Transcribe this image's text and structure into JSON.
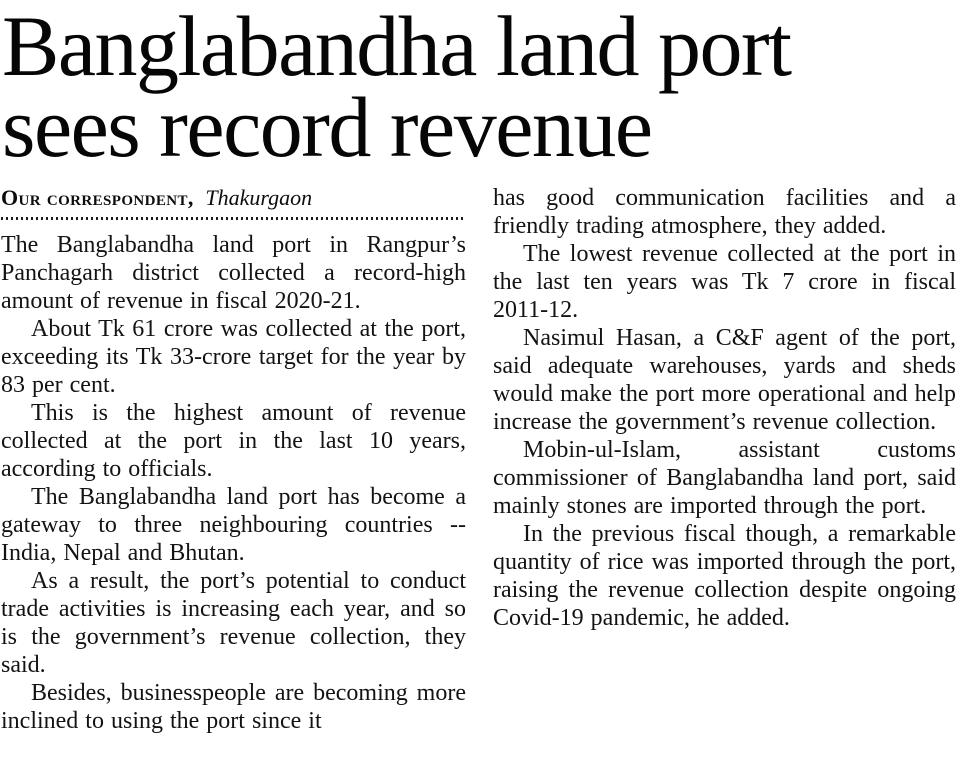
{
  "page": {
    "background_color": "#ffffff",
    "text_color": "#131313"
  },
  "headline": {
    "line1": "Banglabandha land port",
    "line2": "sees record revenue"
  },
  "byline": {
    "author": "Our correspondent,",
    "location": "Thakurgaon"
  },
  "article": {
    "left_column": {
      "paragraphs": [
        "The Banglabandha land port in Rangpur’s Panchagarh district collected a record-high amount of revenue in fiscal 2020-21.",
        "About Tk 61 crore was collected at the port, exceeding its Tk 33-crore target for the year by 83 per cent.",
        "This is the highest amount of revenue collected at the port in the last 10 years, according to officials.",
        "The Banglabandha land port has become a gateway to three neighbouring countries -- India, Nepal and Bhutan.",
        "As a result, the port’s potential to conduct trade activities is increasing each year, and so is the government’s revenue collection, they said.",
        "Besides, businesspeople are becoming more inclined to using the port since it"
      ]
    },
    "right_column": {
      "paragraphs": [
        "has good communication facilities and a friendly trading atmosphere, they added.",
        "The lowest revenue collected at the port in the last ten years was Tk 7 crore in fiscal 2011-12.",
        "Nasimul Hasan, a C&F agent of the port, said adequate warehouses, yards and sheds would make the port more operational and help increase the government’s revenue collection.",
        "Mobin-ul-Islam, assistant customs commissioner of Banglabandha land port, said mainly stones are imported through the port.",
        "In the previous fiscal though, a remarkable quantity of rice was imported through the port, raising the revenue collection despite ongoing Covid-19 pandemic, he added."
      ]
    }
  }
}
